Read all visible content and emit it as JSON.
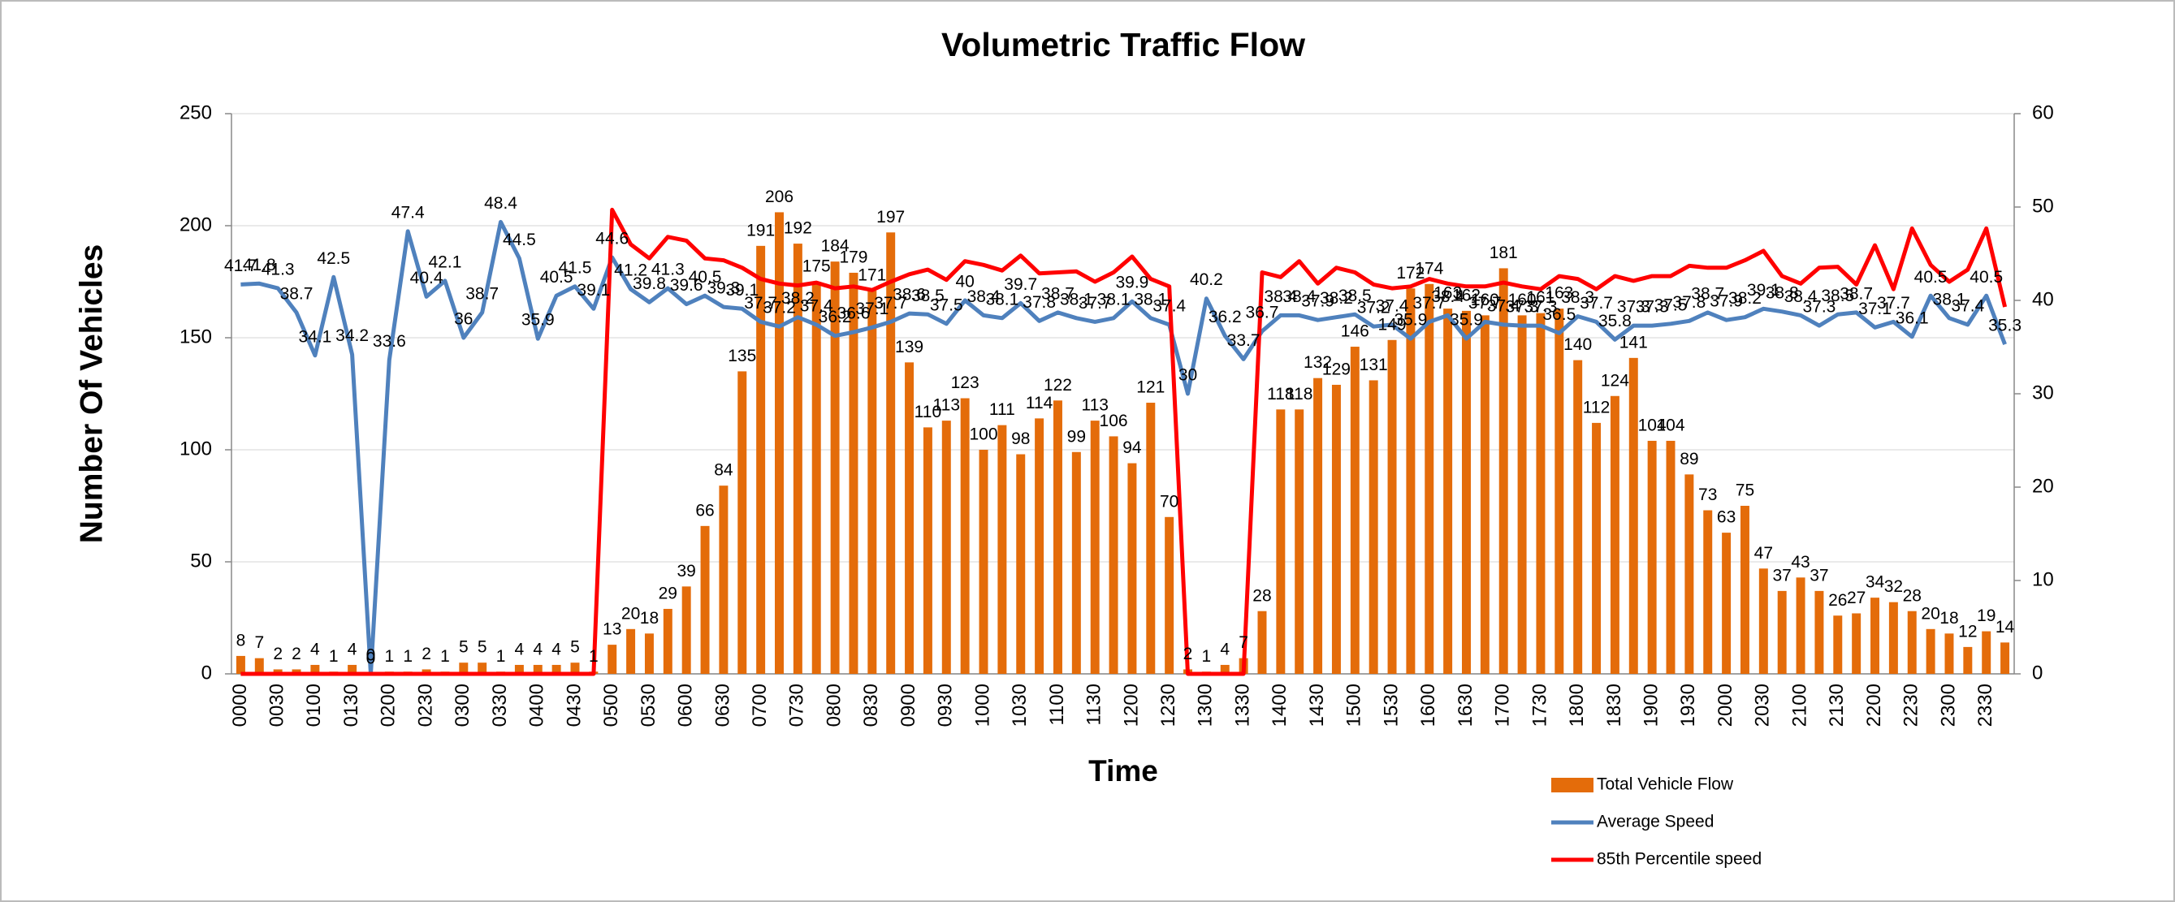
{
  "chart_data": {
    "type": "bar_line",
    "title": "Volumetric Traffic Flow",
    "x_label": "Time",
    "y_label": "Number Of Vehicles",
    "categories": [
      "0000",
      null,
      "0030",
      null,
      "0100",
      null,
      "0130",
      null,
      "0200",
      null,
      "0230",
      null,
      "0300",
      null,
      "0330",
      null,
      "0400",
      null,
      "0430",
      null,
      "0500",
      null,
      "0530",
      null,
      "0600",
      null,
      "0630",
      null,
      "0700",
      null,
      "0730",
      null,
      "0800",
      null,
      "0830",
      null,
      "0900",
      null,
      "0930",
      null,
      "1000",
      null,
      "1030",
      null,
      "1100",
      null,
      "1130",
      null,
      "1200",
      null,
      "1230",
      null,
      "1300",
      null,
      "1330",
      null,
      "1400",
      null,
      "1430",
      null,
      "1500",
      null,
      "1530",
      null,
      "1600",
      null,
      "1630",
      null,
      "1700",
      null,
      "1730",
      null,
      "1800",
      null,
      "1830",
      null,
      "1900",
      null,
      "1930",
      null,
      "2000",
      null,
      "2030",
      null,
      "2100",
      null,
      "2130",
      null,
      "2200",
      null,
      "2230",
      null,
      "2300",
      null,
      "2330",
      null
    ],
    "series": [
      {
        "name": "Total Vehicle Flow",
        "type": "bar",
        "color": "#e46c0a",
        "values": [
          8,
          7,
          2,
          2,
          4,
          1,
          4,
          0,
          1,
          1,
          2,
          1,
          5,
          5,
          1,
          4,
          4,
          4,
          5,
          1,
          13,
          20,
          18,
          29,
          39,
          66,
          84,
          135,
          191,
          206,
          192,
          175,
          184,
          179,
          171,
          197,
          139,
          110,
          113,
          123,
          100,
          111,
          98,
          114,
          122,
          99,
          113,
          106,
          94,
          121,
          70,
          2,
          1,
          4,
          7,
          28,
          118,
          118,
          132,
          129,
          146,
          131,
          149,
          172,
          174,
          163,
          162,
          160,
          181,
          160,
          161,
          163,
          140,
          112,
          124,
          141,
          104,
          104,
          89,
          73,
          63,
          75,
          47,
          37,
          43,
          37,
          26,
          27,
          34,
          32,
          28,
          20,
          18,
          12,
          19,
          14
        ]
      },
      {
        "name": "Average Speed",
        "type": "line",
        "axis": "y2",
        "color": "#4f81bd",
        "values": [
          41.7,
          41.8,
          41.3,
          38.7,
          34.1,
          42.5,
          34.2,
          0,
          33.6,
          47.4,
          40.4,
          42.1,
          36,
          38.7,
          48.4,
          44.5,
          35.9,
          40.5,
          41.5,
          39.1,
          44.6,
          41.2,
          39.8,
          41.3,
          39.6,
          40.5,
          39.3,
          39.1,
          37.7,
          37.2,
          38.2,
          37.4,
          36.2,
          36.6,
          37.1,
          37.7,
          38.6,
          38.5,
          37.5,
          40,
          38.4,
          38.1,
          39.7,
          37.8,
          38.7,
          38.1,
          37.7,
          38.1,
          39.9,
          38.1,
          37.4,
          30,
          40.2,
          36.2,
          33.7,
          36.7,
          38.4,
          38.4,
          37.9,
          38.2,
          38.5,
          37.2,
          37.4,
          35.9,
          37.7,
          38.4,
          35.9,
          37.7,
          37.4,
          37.3,
          37.3,
          36.5,
          38.3,
          37.7,
          35.8,
          37.3,
          37.3,
          37.5,
          37.8,
          38.7,
          37.9,
          38.2,
          39.1,
          38.8,
          38.4,
          37.3,
          38.5,
          38.7,
          37.1,
          37.7,
          36.1,
          40.5,
          38.1,
          37.4,
          40.5,
          35.3
        ]
      },
      {
        "name": "85th Percentile speed",
        "type": "line",
        "axis": "y2",
        "color": "#ff0000",
        "values": [
          0,
          0,
          0,
          0,
          0,
          0,
          0,
          0,
          0,
          0,
          0,
          0,
          0,
          0,
          0,
          0,
          0,
          0,
          0,
          0,
          49.7,
          46,
          44.5,
          46.8,
          46.4,
          44.5,
          44.3,
          43.5,
          42.3,
          41.8,
          41.6,
          41.9,
          41.3,
          41.5,
          41.1,
          42.0,
          42.8,
          43.3,
          42.2,
          44.2,
          43.8,
          43.2,
          44.8,
          42.9,
          43.0,
          43.1,
          42.0,
          43.0,
          44.7,
          42.3,
          41.5,
          0,
          0,
          0,
          0,
          43,
          42.5,
          44.2,
          41.8,
          43.5,
          43,
          41.7,
          41.3,
          41.5,
          42.3,
          41.8,
          41.5,
          41.5,
          41.9,
          41.5,
          41.2,
          42.6,
          42.3,
          41.2,
          42.6,
          42.1,
          42.6,
          42.6,
          43.7,
          43.5,
          43.5,
          44.3,
          45.3,
          42.6,
          41.8,
          43.5,
          43.6,
          41.7,
          45.9,
          41.2,
          47.7,
          43.8,
          42,
          43.3,
          47.7,
          39.3
        ]
      }
    ],
    "ylim": [
      0,
      250
    ],
    "yticks": [
      0,
      50,
      100,
      150,
      200,
      250
    ],
    "y2lim": [
      0,
      60
    ],
    "y2ticks": [
      0,
      10,
      20,
      30,
      40,
      50,
      60
    ],
    "grid": true,
    "legend": "bottom-right"
  }
}
